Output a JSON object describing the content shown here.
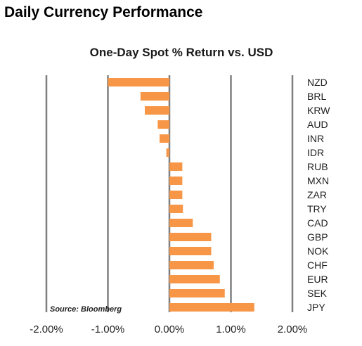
{
  "page_title": "Daily Currency Performance",
  "chart_data": {
    "type": "bar",
    "orientation": "horizontal",
    "title": "One-Day Spot % Return vs. USD",
    "xlabel": "",
    "ylabel": "",
    "source_note": "Source: Bloomberg",
    "categories": [
      "NZD",
      "BRL",
      "KRW",
      "AUD",
      "INR",
      "IDR",
      "RUB",
      "MXN",
      "ZAR",
      "TRY",
      "CAD",
      "GBP",
      "NOK",
      "CHF",
      "EUR",
      "SEK",
      "JPY"
    ],
    "values": [
      -1.0,
      -0.47,
      -0.4,
      -0.19,
      -0.16,
      -0.05,
      0.21,
      0.21,
      0.21,
      0.22,
      0.38,
      0.68,
      0.68,
      0.72,
      0.82,
      0.9,
      1.38
    ],
    "xlim": [
      -2.0,
      2.0
    ],
    "xticks": [
      -2.0,
      -1.0,
      0.0,
      1.0,
      2.0
    ],
    "xtick_labels": [
      "-2.00%",
      "-1.00%",
      "0.00%",
      "1.00%",
      "2.00%"
    ],
    "grid": "vertical",
    "bar_color": "#F79646",
    "grid_color": "#7f7f7f",
    "legend": "none"
  }
}
